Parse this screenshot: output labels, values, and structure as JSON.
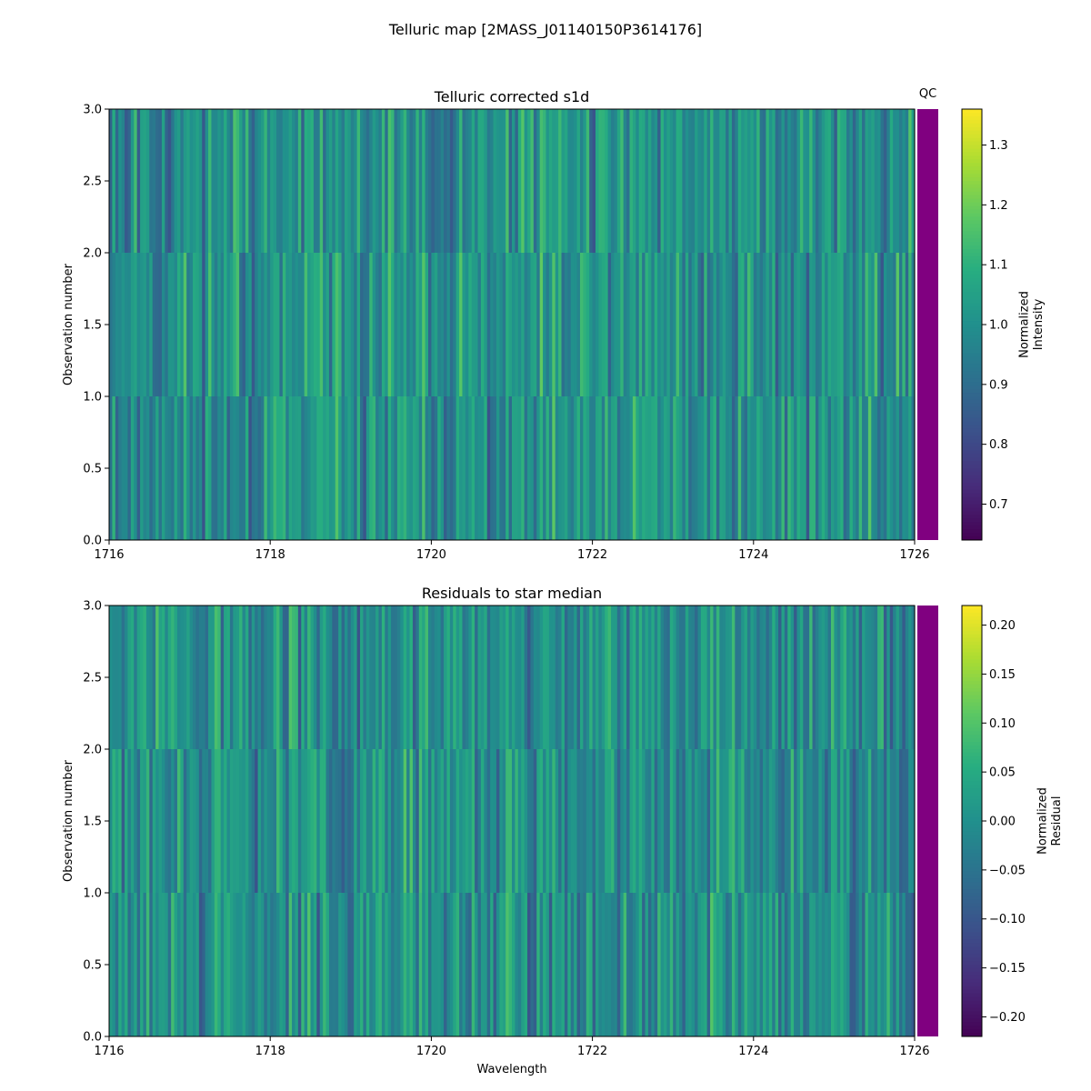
{
  "chart_data": {
    "type": "heatmap",
    "suptitle": "Telluric map [2MASS_J01140150P3614176]",
    "panels": [
      {
        "title": "Telluric corrected s1d",
        "xlabel": "",
        "ylabel": "Observation number",
        "xlim": [
          1716,
          1726
        ],
        "ylim": [
          0.0,
          3.0
        ],
        "xticks": [
          "1716",
          "1718",
          "1720",
          "1722",
          "1724",
          "1726"
        ],
        "yticks": [
          "0.0",
          "0.5",
          "1.0",
          "1.5",
          "2.0",
          "2.5",
          "3.0"
        ],
        "rows": 3,
        "colorbar": {
          "label_line1": "Normalized",
          "label_line2": "Intensity",
          "vmin": 0.64,
          "vmax": 1.36,
          "ticks": [
            "0.7",
            "0.8",
            "0.9",
            "1.0",
            "1.1",
            "1.2",
            "1.3"
          ],
          "tick_values": [
            0.7,
            0.8,
            0.9,
            1.0,
            1.1,
            1.2,
            1.3
          ]
        },
        "qc_label": "QC",
        "qc_color": "#800080",
        "value_center": 1.0,
        "value_spread": 0.11,
        "seed": 11
      },
      {
        "title": "Residuals to star median",
        "xlabel": "Wavelength",
        "ylabel": "Observation number",
        "xlim": [
          1716,
          1726
        ],
        "ylim": [
          0.0,
          3.0
        ],
        "xticks": [
          "1716",
          "1718",
          "1720",
          "1722",
          "1724",
          "1726"
        ],
        "yticks": [
          "0.0",
          "0.5",
          "1.0",
          "1.5",
          "2.0",
          "2.5",
          "3.0"
        ],
        "rows": 3,
        "colorbar": {
          "label_line1": "Normalized",
          "label_line2": "Residual",
          "vmin": -0.22,
          "vmax": 0.22,
          "ticks": [
            "0.20",
            "0.15",
            "0.10",
            "0.05",
            "0.00",
            "−0.05",
            "−0.10",
            "−0.15",
            "−0.20"
          ],
          "tick_values": [
            0.2,
            0.15,
            0.1,
            0.05,
            0.0,
            -0.05,
            -0.1,
            -0.15,
            -0.2
          ]
        },
        "qc_label": "",
        "qc_color": "#800080",
        "value_center": 0.0,
        "value_spread": 0.065,
        "seed": 29
      }
    ],
    "colormap": "viridis"
  }
}
